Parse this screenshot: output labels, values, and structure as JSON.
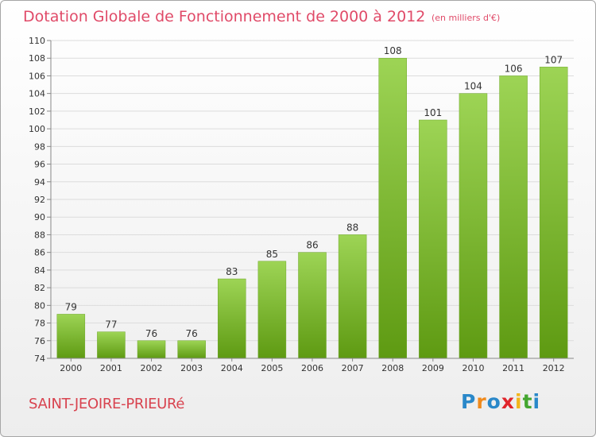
{
  "header": {
    "title": "Dotation Globale de Fonctionnement de 2000 à 2012",
    "unit": "(en milliers d'€)"
  },
  "footer": {
    "commune": "SAINT-JEOIRE-PRIEURé",
    "logo": "Proxiti"
  },
  "colors": {
    "bar_light": "#9dd455",
    "bar_dark": "#5e9a12",
    "title": "#e04a68",
    "logo": [
      "#2a88c9",
      "#f08a1c",
      "#2a88c9",
      "#e0252b",
      "#f2b51b",
      "#44a62f",
      "#2a88c9"
    ]
  },
  "chart_data": {
    "type": "bar",
    "title": "Dotation Globale de Fonctionnement de 2000 à 2012",
    "subtitle": "(en milliers d'€)",
    "xlabel": "",
    "ylabel": "",
    "categories": [
      "2000",
      "2001",
      "2002",
      "2003",
      "2004",
      "2005",
      "2006",
      "2007",
      "2008",
      "2009",
      "2010",
      "2011",
      "2012"
    ],
    "values": [
      79,
      77,
      76,
      76,
      83,
      85,
      86,
      88,
      108,
      101,
      104,
      106,
      107
    ],
    "ylim": [
      74,
      110
    ],
    "yticks": [
      74,
      76,
      78,
      80,
      82,
      84,
      86,
      88,
      90,
      92,
      94,
      96,
      98,
      100,
      102,
      104,
      106,
      108,
      110
    ],
    "grid": true,
    "legend": "none",
    "data_labels": true
  }
}
